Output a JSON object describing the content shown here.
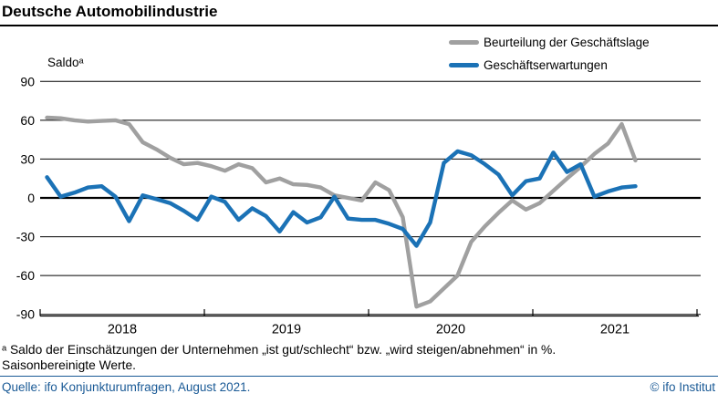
{
  "header": {
    "title": "Deutsche Automobilindustrie"
  },
  "chart_data": {
    "type": "line",
    "title": "Deutsche Automobilindustrie",
    "unit_label": "Saldoᵃ",
    "frequency": "monthly",
    "x_start": "2018-01",
    "x_end": "2021-08",
    "x_labels": [
      "2018-01",
      "2018-02",
      "2018-03",
      "2018-04",
      "2018-05",
      "2018-06",
      "2018-07",
      "2018-08",
      "2018-09",
      "2018-10",
      "2018-11",
      "2018-12",
      "2019-01",
      "2019-02",
      "2019-03",
      "2019-04",
      "2019-05",
      "2019-06",
      "2019-07",
      "2019-08",
      "2019-09",
      "2019-10",
      "2019-11",
      "2019-12",
      "2020-01",
      "2020-02",
      "2020-03",
      "2020-04",
      "2020-05",
      "2020-06",
      "2020-07",
      "2020-08",
      "2020-09",
      "2020-10",
      "2020-11",
      "2020-12",
      "2021-01",
      "2021-02",
      "2021-03",
      "2021-04",
      "2021-05",
      "2021-06",
      "2021-07",
      "2021-08"
    ],
    "series": [
      {
        "name": "Beurteilung der Geschäftslage",
        "color": "#a0a0a0",
        "values": [
          62,
          61.5,
          60,
          59,
          59.5,
          60,
          57,
          43,
          37.5,
          31,
          26,
          27,
          24.5,
          21,
          26,
          23,
          12,
          15,
          10.5,
          10,
          8,
          2,
          0,
          -2,
          12,
          6,
          -15,
          -84,
          -80,
          -70,
          -60,
          -34,
          -22,
          -11.5,
          -2,
          -9,
          -4,
          5.5,
          15,
          24,
          34,
          42,
          57,
          29
        ]
      },
      {
        "name": "Geschäftserwartungen",
        "color": "#1b72b6",
        "values": [
          16,
          1,
          4,
          8,
          9,
          1,
          -18,
          2,
          -1,
          -4,
          -10,
          -17,
          1,
          -3,
          -17,
          -8,
          -14,
          -26,
          -11,
          -19,
          -15,
          1,
          -16,
          -17,
          -17,
          -20,
          -24,
          -37,
          -19,
          27,
          36,
          33,
          26,
          18,
          2,
          13,
          15,
          35,
          20,
          26,
          1,
          5,
          8,
          9
        ]
      }
    ],
    "ylim": [
      -90,
      90
    ],
    "yticks": [
      90,
      60,
      30,
      0,
      -30,
      -60,
      -90
    ],
    "xtick_years": [
      "2018",
      "2019",
      "2020",
      "2021"
    ],
    "grid": "horizontal",
    "legend_position": "top-right"
  },
  "footer": {
    "footnote1": "ᵃ Saldo der Einschätzungen der Unternehmen „ist gut/schlecht“ bzw. „wird steigen/abnehmen“ in %.",
    "footnote2": "Saisonbereinigte Werte.",
    "source": "Quelle: ifo Konjunkturumfragen, August 2021.",
    "copyright": "© ifo Institut",
    "accent_color": "#1a5a96"
  }
}
